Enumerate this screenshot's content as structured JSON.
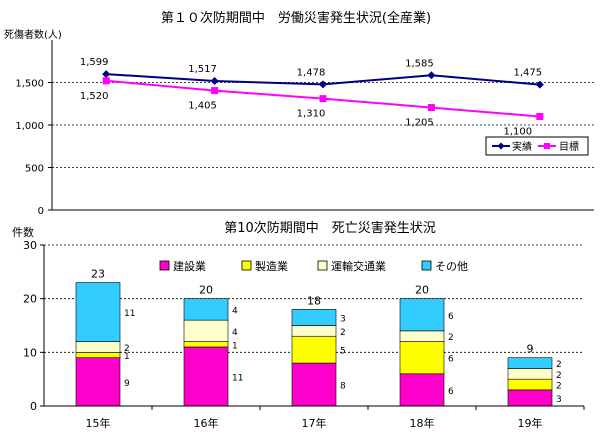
{
  "chart_data": [
    {
      "type": "line",
      "title": "第１０次防期間中　労働災害発生状況(全産業)",
      "ylabel": "死傷者数(人)",
      "ylim": [
        0,
        2000
      ],
      "yticks": [
        "0",
        "500",
        "1,000",
        "1,500"
      ],
      "ytick_values": [
        0,
        500,
        1000,
        1500
      ],
      "grid": true,
      "legend_position": "right",
      "series": [
        {
          "name": "実績",
          "color": "#000080",
          "marker": "diamond",
          "values": [
            1599,
            1517,
            1478,
            1585,
            1475
          ],
          "labels": [
            "1,599",
            "1,517",
            "1,478",
            "1,585",
            "1,475"
          ]
        },
        {
          "name": "目標",
          "color": "#FF00FF",
          "marker": "square",
          "values": [
            1520,
            1405,
            1310,
            1205,
            1100
          ],
          "labels": [
            "1,520",
            "1,405",
            "1,310",
            "1,205",
            "1,100"
          ]
        }
      ]
    },
    {
      "type": "bar",
      "stacked": true,
      "title": "第10次防期間中　死亡災害発生状況",
      "ylabel": "件数",
      "categories": [
        "15年",
        "16年",
        "17年",
        "18年",
        "19年"
      ],
      "ylim": [
        0,
        30
      ],
      "yticks": [
        "0",
        "10",
        "20",
        "30"
      ],
      "ytick_values": [
        0,
        10,
        20,
        30
      ],
      "grid": true,
      "legend_position": "top",
      "totals": [
        23,
        20,
        18,
        20,
        9
      ],
      "series": [
        {
          "name": "建設業",
          "color": "#FF00CC",
          "values": [
            9,
            11,
            8,
            6,
            3
          ]
        },
        {
          "name": "製造業",
          "color": "#FFFF00",
          "values": [
            1,
            1,
            5,
            6,
            2
          ]
        },
        {
          "name": "運輸交通業",
          "color": "#FFFFCC",
          "values": [
            2,
            4,
            2,
            2,
            2
          ]
        },
        {
          "name": "その他",
          "color": "#33CCFF",
          "values": [
            11,
            4,
            3,
            6,
            2
          ]
        }
      ]
    }
  ]
}
